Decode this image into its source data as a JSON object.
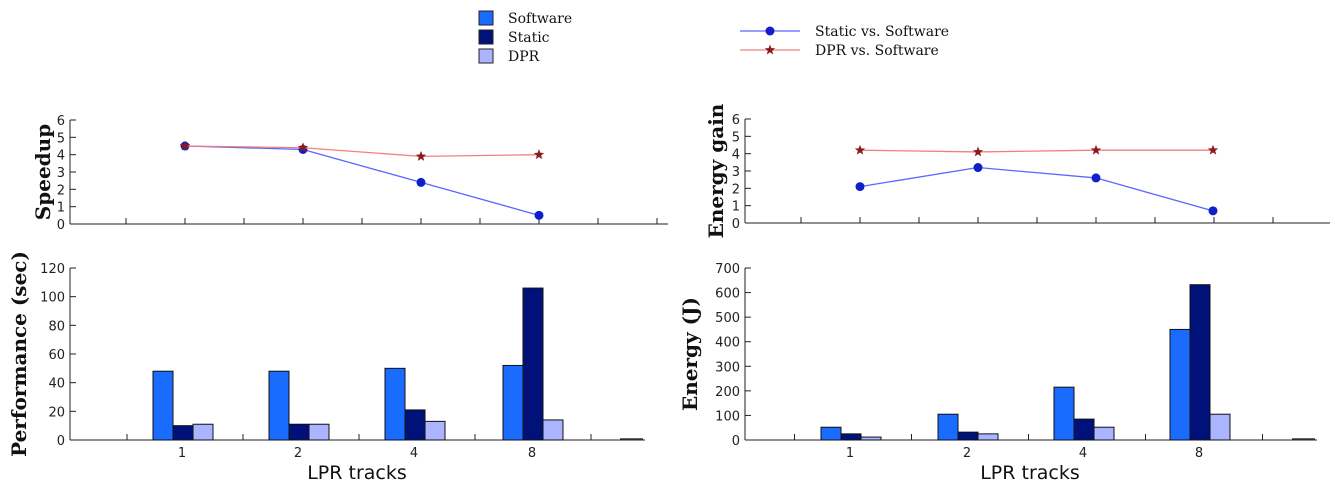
{
  "legend_bars": [
    {
      "name": "Software",
      "color": "#1a6cff"
    },
    {
      "name": "Static",
      "color": "#00127a"
    },
    {
      "name": "DPR",
      "color": "#aab4ff"
    }
  ],
  "legend_lines": [
    {
      "name": "Static vs. Software",
      "color": "#5a66ff",
      "marker": "circle",
      "marker_color": "#1020c8"
    },
    {
      "name": "DPR vs. Software",
      "color": "#f08080",
      "marker": "star",
      "marker_color": "#8b1a1a"
    }
  ],
  "chart_data": [
    {
      "id": "speedup",
      "type": "line",
      "categories": [
        "1",
        "2",
        "4",
        "8"
      ],
      "ylabel": "Speedup",
      "ylim": [
        0,
        6
      ],
      "yticks": [
        0,
        1,
        2,
        3,
        4,
        5,
        6
      ],
      "series": [
        {
          "name": "Static vs. Software",
          "values": [
            4.5,
            4.3,
            2.4,
            0.5
          ]
        },
        {
          "name": "DPR vs. Software",
          "values": [
            4.5,
            4.4,
            3.9,
            4.0
          ]
        }
      ]
    },
    {
      "id": "performance",
      "type": "bar",
      "categories": [
        "1",
        "2",
        "4",
        "8"
      ],
      "xlabel": "LPR tracks",
      "ylabel": "Performance (sec)",
      "ylim": [
        0,
        120
      ],
      "yticks": [
        0,
        20,
        40,
        60,
        80,
        100,
        120
      ],
      "series": [
        {
          "name": "Software",
          "values": [
            48,
            48,
            50,
            52
          ]
        },
        {
          "name": "Static",
          "values": [
            10,
            11,
            21,
            106
          ]
        },
        {
          "name": "DPR",
          "values": [
            11,
            11,
            13,
            14
          ]
        }
      ]
    },
    {
      "id": "energy_gain",
      "type": "line",
      "categories": [
        "1",
        "2",
        "4",
        "8"
      ],
      "ylabel": "Energy gain",
      "ylim": [
        0,
        6
      ],
      "yticks": [
        0,
        1,
        2,
        3,
        4,
        5,
        6
      ],
      "series": [
        {
          "name": "Static vs. Software",
          "values": [
            2.1,
            3.2,
            2.6,
            0.7
          ]
        },
        {
          "name": "DPR vs. Software",
          "values": [
            4.2,
            4.1,
            4.2,
            4.2
          ]
        }
      ]
    },
    {
      "id": "energy",
      "type": "bar",
      "categories": [
        "1",
        "2",
        "4",
        "8"
      ],
      "xlabel": "LPR tracks",
      "ylabel": "Energy (J)",
      "ylim": [
        0,
        700
      ],
      "yticks": [
        0,
        100,
        200,
        300,
        400,
        500,
        600,
        700
      ],
      "series": [
        {
          "name": "Software",
          "values": [
            52,
            105,
            215,
            450
          ]
        },
        {
          "name": "Static",
          "values": [
            25,
            32,
            85,
            632
          ]
        },
        {
          "name": "DPR",
          "values": [
            12,
            25,
            52,
            105
          ]
        }
      ]
    }
  ]
}
